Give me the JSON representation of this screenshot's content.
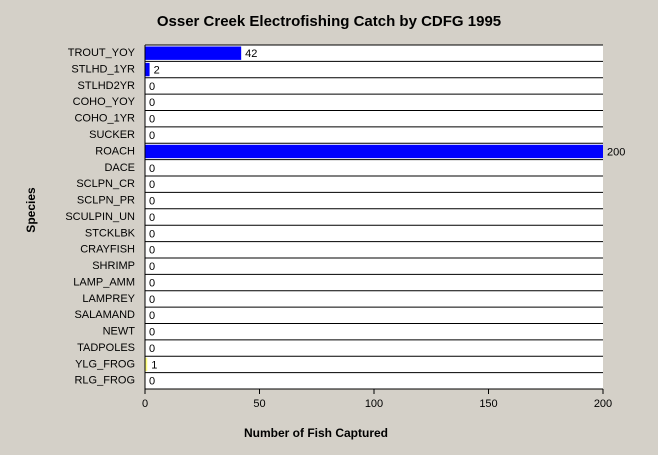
{
  "chart_data": {
    "type": "bar",
    "orientation": "horizontal",
    "title": "Osser Creek Electrofishing Catch by CDFG 1995",
    "x_label": "Number of Fish Captured",
    "y_label": "Species",
    "categories": [
      "TROUT_YOY",
      "STLHD_1YR",
      "STLHD2YR",
      "COHO_YOY",
      "COHO_1YR",
      "SUCKER",
      "ROACH",
      "DACE",
      "SCLPN_CR",
      "SCLPN_PR",
      "SCULPIN_UN",
      "STCKLBK",
      "CRAYFISH",
      "SHRIMP",
      "LAMP_AMM",
      "LAMPREY",
      "SALAMAND",
      "NEWT",
      "TADPOLES",
      "YLG_FROG",
      "RLG_FROG"
    ],
    "values": [
      42,
      2,
      0,
      0,
      0,
      0,
      200,
      0,
      0,
      0,
      0,
      0,
      0,
      0,
      0,
      0,
      0,
      0,
      0,
      1,
      0
    ],
    "colors": [
      "#0000ff",
      "#0000ff",
      "#0000ff",
      "#0000ff",
      "#0000ff",
      "#0000ff",
      "#0000ff",
      "#0000ff",
      "#0000ff",
      "#0000ff",
      "#0000ff",
      "#0000ff",
      "#0000ff",
      "#0000ff",
      "#0000ff",
      "#0000ff",
      "#0000ff",
      "#0000ff",
      "#0000ff",
      "#ffff80",
      "#0000ff"
    ],
    "xlim": [
      0,
      200
    ],
    "xticks": [
      0,
      50,
      100,
      150,
      200
    ]
  }
}
